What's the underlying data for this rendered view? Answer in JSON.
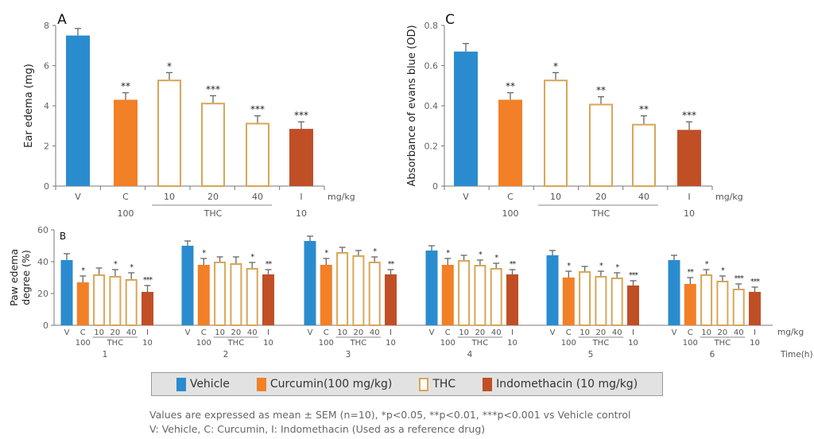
{
  "colors": {
    "vehicle": "#2a8ccf",
    "curcumin": "#f28026",
    "thc_stroke": "#d8a657",
    "indomethacin": "#c04f26",
    "axis": "#777777"
  },
  "chart_data": [
    {
      "panel": "A",
      "type": "bar",
      "ylabel": "Ear edema (mg)",
      "ylim": [
        0,
        8
      ],
      "yticks": [
        0,
        2,
        4,
        6,
        8
      ],
      "categories": [
        "V",
        "C",
        "10",
        "20",
        "40",
        "I"
      ],
      "dose_labels": [
        "",
        "100",
        "",
        "",
        "",
        "10"
      ],
      "group_label": "THC",
      "unit_label": "mg/kg",
      "values": [
        7.5,
        4.3,
        5.3,
        4.15,
        3.15,
        2.85
      ],
      "errors": [
        0.35,
        0.35,
        0.35,
        0.35,
        0.35,
        0.35
      ],
      "significance": [
        "",
        "**",
        "*",
        "***",
        "***",
        "***"
      ]
    },
    {
      "panel": "C",
      "type": "bar",
      "ylabel": "Absorbance of evans blue (OD)",
      "ylim": [
        0,
        0.8
      ],
      "yticks": [
        "0",
        "0.2",
        "0.4",
        "0.6",
        "0.8"
      ],
      "categories": [
        "V",
        "C",
        "10",
        "20",
        "40",
        "I"
      ],
      "dose_labels": [
        "",
        "100",
        "",
        "",
        "",
        "10"
      ],
      "group_label": "THC",
      "unit_label": "mg/kg",
      "values": [
        0.67,
        0.43,
        0.53,
        0.41,
        0.31,
        0.28
      ],
      "errors": [
        0.04,
        0.035,
        0.035,
        0.035,
        0.04,
        0.04
      ],
      "significance": [
        "",
        "**",
        "*",
        "**",
        "**",
        "***"
      ]
    },
    {
      "panel": "B",
      "type": "bar",
      "ylabel": [
        "Paw edema",
        "degree (%)"
      ],
      "ylim": [
        0,
        60
      ],
      "yticks": [
        0,
        20,
        40,
        60
      ],
      "categories": [
        "V",
        "C",
        "10",
        "20",
        "40",
        "I"
      ],
      "dose_labels": [
        "",
        "100",
        "",
        "",
        "",
        "10"
      ],
      "group_label": "THC",
      "unit_label": "mg/kg",
      "time_label": "Time(h)",
      "time_points": [
        "1",
        "2",
        "3",
        "4",
        "5",
        "6"
      ],
      "series_by_time": [
        {
          "values": [
            41,
            27,
            32,
            31,
            29,
            21
          ],
          "errors": [
            4,
            4,
            4,
            4,
            4,
            4
          ],
          "significance": [
            "",
            "*",
            "",
            "*",
            "*",
            "***"
          ]
        },
        {
          "values": [
            50,
            38,
            40,
            39,
            36,
            32
          ],
          "errors": [
            3,
            4,
            3,
            4,
            3.5,
            3
          ],
          "significance": [
            "",
            "*",
            "",
            "",
            "*",
            "**"
          ]
        },
        {
          "values": [
            53,
            38,
            46,
            44,
            40,
            32
          ],
          "errors": [
            3,
            4,
            3,
            3,
            3,
            3
          ],
          "significance": [
            "",
            "*",
            "",
            "",
            "*",
            "**"
          ]
        },
        {
          "values": [
            47,
            38,
            41,
            38,
            36,
            32
          ],
          "errors": [
            3,
            4,
            3,
            3,
            3,
            3
          ],
          "significance": [
            "",
            "*",
            "",
            "*",
            "*",
            "**"
          ]
        },
        {
          "values": [
            44,
            30,
            34,
            31,
            30,
            25
          ],
          "errors": [
            3,
            4,
            3,
            3,
            3,
            3
          ],
          "significance": [
            "",
            "*",
            "",
            "*",
            "*",
            "***"
          ]
        },
        {
          "values": [
            41,
            26,
            32,
            28,
            23,
            21
          ],
          "errors": [
            3,
            4,
            3,
            3,
            3,
            3
          ],
          "significance": [
            "",
            "**",
            "*",
            "*",
            "***",
            "***"
          ]
        }
      ]
    }
  ],
  "legend": [
    {
      "label": "Vehicle",
      "key": "vehicle"
    },
    {
      "label": "Curcumin(100 mg/kg)",
      "key": "curcumin"
    },
    {
      "label": "THC",
      "key": "thc"
    },
    {
      "label": "Indomethacin (10 mg/kg)",
      "key": "indomethacin"
    }
  ],
  "footnotes": [
    "Values are expressed as mean ± SEM (n=10), *p<0.05, **p<0.01, ***p<0.001 vs Vehicle control",
    "V: Vehicle, C: Curcumin, I: Indomethacin (Used as a reference drug)"
  ]
}
